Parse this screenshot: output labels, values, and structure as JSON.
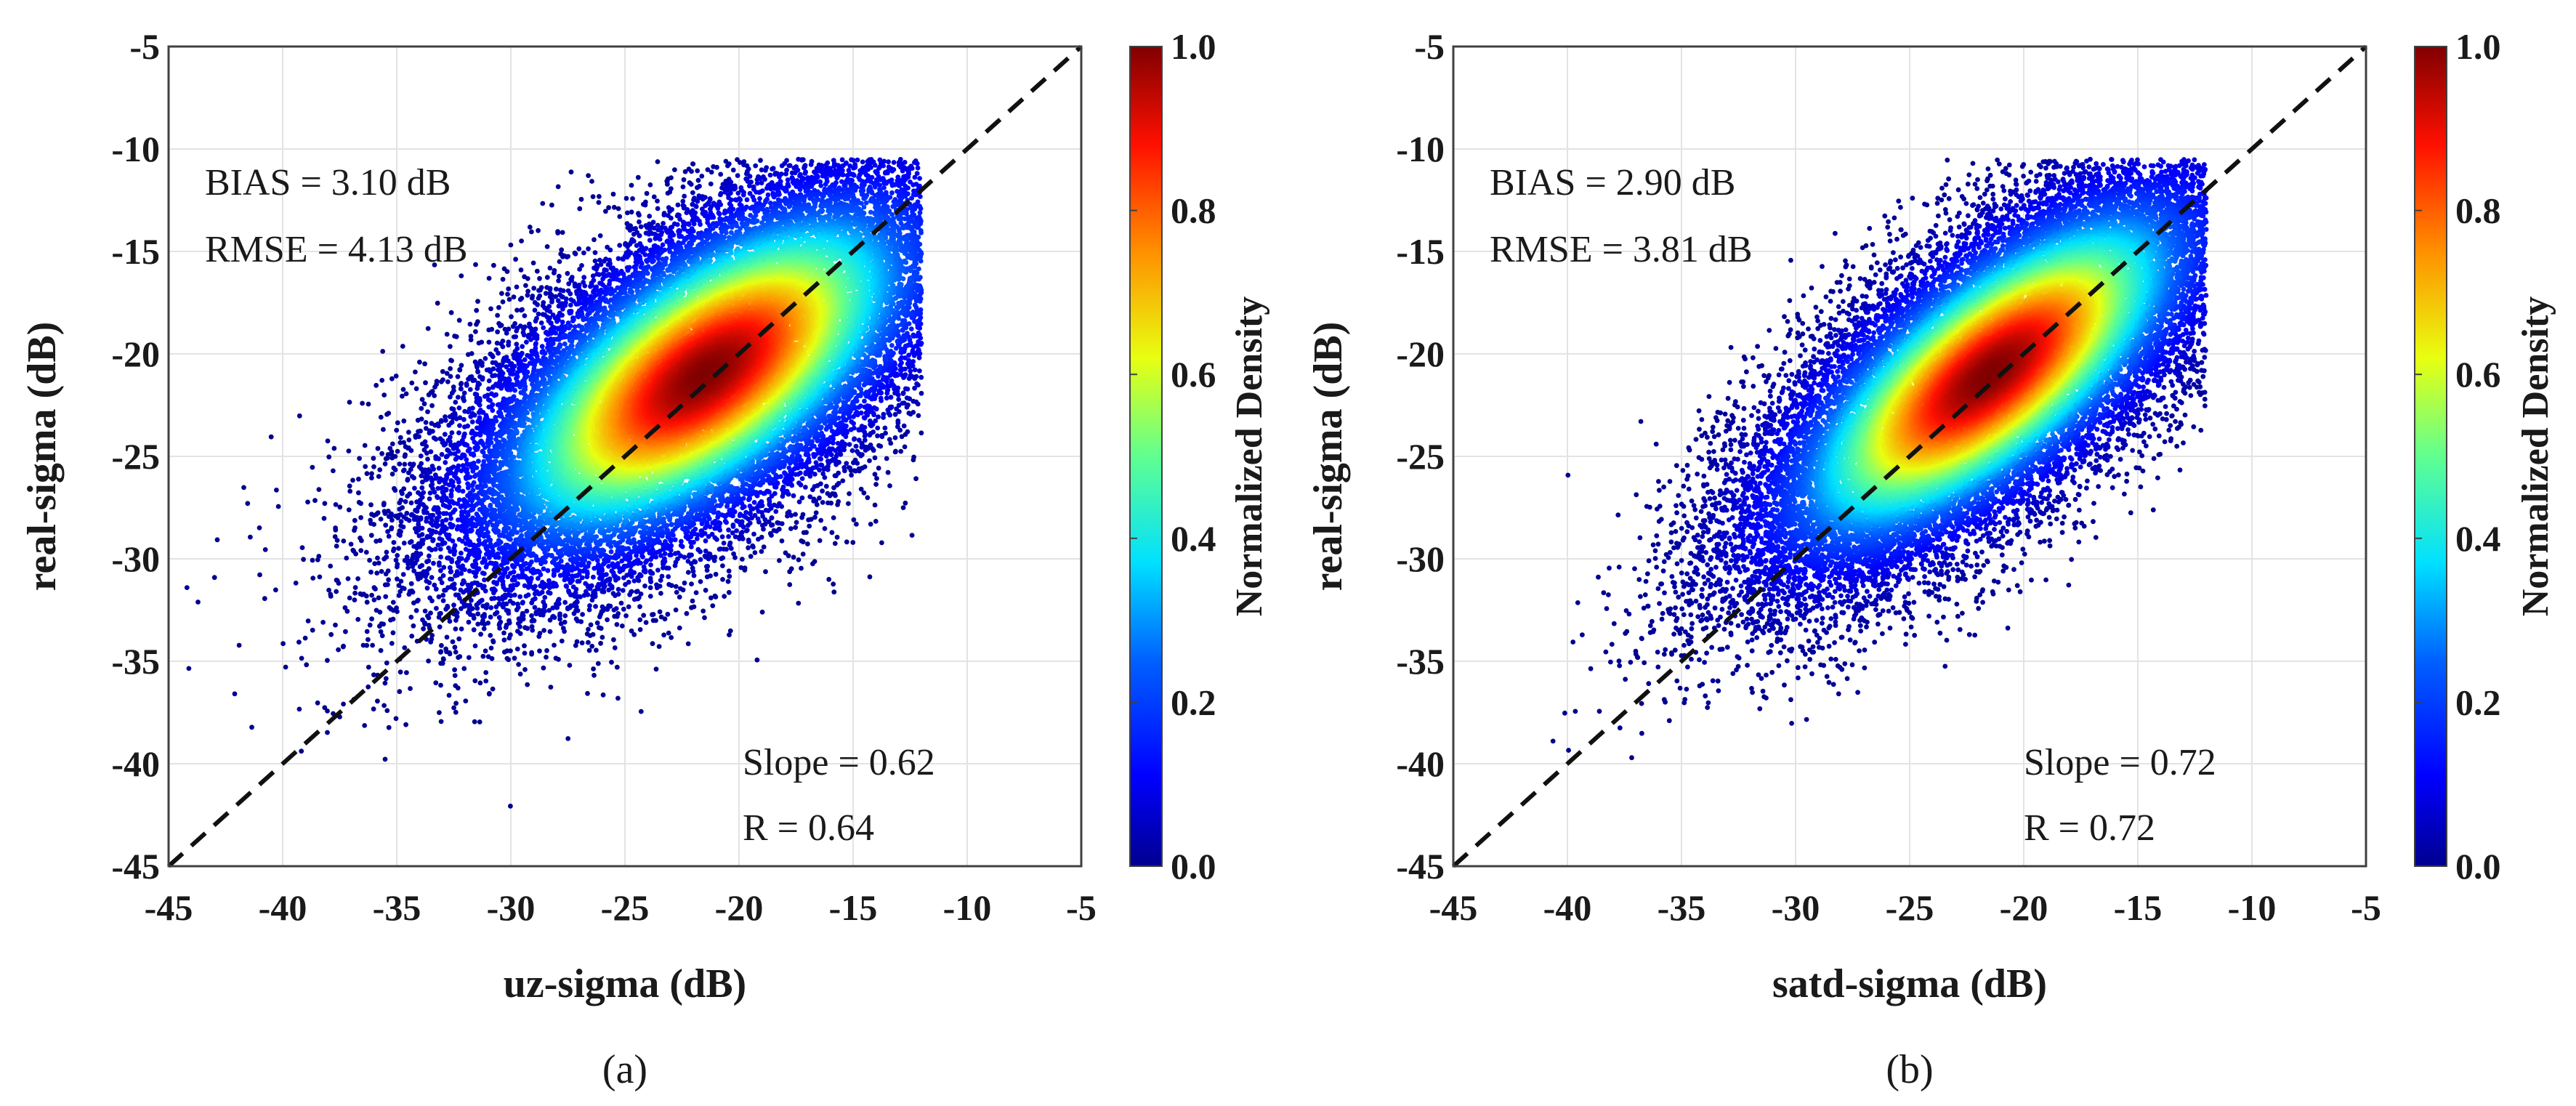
{
  "chart_data": [
    {
      "type": "scatter",
      "panel_label": "(a)",
      "xlabel": "uz-sigma (dB)",
      "ylabel": "real-sigma (dB)",
      "xlim": [
        -45,
        -5
      ],
      "ylim": [
        -45,
        -5
      ],
      "xticks": [
        -45,
        -40,
        -35,
        -30,
        -25,
        -20,
        -15,
        -10,
        -5
      ],
      "yticks": [
        -45,
        -40,
        -35,
        -30,
        -25,
        -20,
        -15,
        -10,
        -5
      ],
      "grid": true,
      "reference_line": {
        "x": [
          -45,
          -5
        ],
        "y": [
          -45,
          -5
        ],
        "style": "dashed",
        "label": "1:1 line"
      },
      "annotations": [
        "BIAS = 3.10 dB",
        "RMSE = 4.13 dB",
        "Slope = 0.62",
        "R = 0.64"
      ],
      "stats": {
        "bias_db": 3.1,
        "rmse_db": 4.13,
        "slope": 0.62,
        "r": 0.64
      },
      "density_peak": {
        "x": -21.5,
        "y": -21
      },
      "point_cloud": {
        "center_x": -21.5,
        "center_y": -21,
        "sd_x": 5.5,
        "sd_y": 5.0,
        "correlation": 0.64,
        "approx_count": 30000
      },
      "colorbar": {
        "label": "Normalized Density",
        "range": [
          0.0,
          1.0
        ],
        "ticks": [
          "0.0",
          "0.2",
          "0.4",
          "0.6",
          "0.8",
          "1.0"
        ],
        "colormap": "jet"
      }
    },
    {
      "type": "scatter",
      "panel_label": "(b)",
      "xlabel": "satd-sigma (dB)",
      "ylabel": "real-sigma (dB)",
      "xlim": [
        -45,
        -5
      ],
      "ylim": [
        -45,
        -5
      ],
      "xticks": [
        -45,
        -40,
        -35,
        -30,
        -25,
        -20,
        -15,
        -10,
        -5
      ],
      "yticks": [
        -45,
        -40,
        -35,
        -30,
        -25,
        -20,
        -15,
        -10,
        -5
      ],
      "grid": true,
      "reference_line": {
        "x": [
          -45,
          -5
        ],
        "y": [
          -45,
          -5
        ],
        "style": "dashed",
        "label": "1:1 line"
      },
      "annotations": [
        "BIAS = 2.90 dB",
        "RMSE = 3.81 dB",
        "Slope = 0.72",
        "R = 0.72"
      ],
      "stats": {
        "bias_db": 2.9,
        "rmse_db": 3.81,
        "slope": 0.72,
        "r": 0.72
      },
      "density_peak": {
        "x": -21.5,
        "y": -21
      },
      "point_cloud": {
        "center_x": -21.5,
        "center_y": -21,
        "sd_x": 5.2,
        "sd_y": 5.0,
        "correlation": 0.72,
        "approx_count": 30000
      },
      "colorbar": {
        "label": "Normalized Density",
        "range": [
          0.0,
          1.0
        ],
        "ticks": [
          "0.0",
          "0.2",
          "0.4",
          "0.6",
          "0.8",
          "1.0"
        ],
        "colormap": "jet"
      }
    }
  ],
  "colors": {
    "jet": [
      "#00008f",
      "#0000ff",
      "#0080ff",
      "#00ffff",
      "#80ff80",
      "#ffff00",
      "#ff8000",
      "#ff0000",
      "#800000"
    ],
    "grid": "#e3e3e3",
    "axis": "#404040",
    "text": "#1a1a1a"
  }
}
